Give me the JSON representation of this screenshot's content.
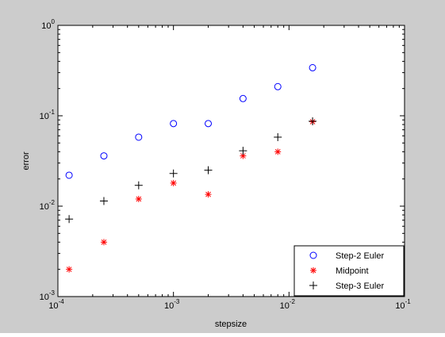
{
  "chart_data": {
    "type": "scatter",
    "title": "",
    "xlabel": "stepsize",
    "ylabel": "error",
    "x_scale": "log",
    "y_scale": "log",
    "xlim": [
      0.0001,
      0.1
    ],
    "ylim": [
      0.001,
      1
    ],
    "grid": false,
    "legend_position": "bottom-right",
    "x_ticks": [
      {
        "base": "10",
        "exp": "-4",
        "value": 0.0001
      },
      {
        "base": "10",
        "exp": "-3",
        "value": 0.001
      },
      {
        "base": "10",
        "exp": "-2",
        "value": 0.01
      },
      {
        "base": "10",
        "exp": "-1",
        "value": 0.1
      }
    ],
    "y_ticks": [
      {
        "base": "10",
        "exp": "-3",
        "value": 0.001
      },
      {
        "base": "10",
        "exp": "-2",
        "value": 0.01
      },
      {
        "base": "10",
        "exp": "-1",
        "value": 0.1
      },
      {
        "base": "10",
        "exp": "0",
        "value": 1
      }
    ],
    "series": [
      {
        "name": "Step-2 Euler",
        "marker": "circle",
        "color": "#0000ff",
        "points": [
          {
            "x": 0.000125,
            "y": 0.022
          },
          {
            "x": 0.00025,
            "y": 0.036
          },
          {
            "x": 0.0005,
            "y": 0.058
          },
          {
            "x": 0.001,
            "y": 0.082
          },
          {
            "x": 0.002,
            "y": 0.082
          },
          {
            "x": 0.004,
            "y": 0.155
          },
          {
            "x": 0.008,
            "y": 0.21
          },
          {
            "x": 0.016,
            "y": 0.34
          }
        ]
      },
      {
        "name": "Midpoint",
        "marker": "asterisk",
        "color": "#ff0000",
        "points": [
          {
            "x": 0.000125,
            "y": 0.002
          },
          {
            "x": 0.00025,
            "y": 0.004
          },
          {
            "x": 0.0005,
            "y": 0.012
          },
          {
            "x": 0.001,
            "y": 0.018
          },
          {
            "x": 0.002,
            "y": 0.0135
          },
          {
            "x": 0.004,
            "y": 0.036
          },
          {
            "x": 0.008,
            "y": 0.04
          },
          {
            "x": 0.016,
            "y": 0.086
          }
        ]
      },
      {
        "name": "Step-3 Euler",
        "marker": "plus",
        "color": "#000000",
        "points": [
          {
            "x": 0.000125,
            "y": 0.0072
          },
          {
            "x": 0.00025,
            "y": 0.0114
          },
          {
            "x": 0.0005,
            "y": 0.017
          },
          {
            "x": 0.001,
            "y": 0.023
          },
          {
            "x": 0.002,
            "y": 0.025
          },
          {
            "x": 0.004,
            "y": 0.041
          },
          {
            "x": 0.008,
            "y": 0.058
          },
          {
            "x": 0.016,
            "y": 0.087
          }
        ]
      }
    ]
  }
}
